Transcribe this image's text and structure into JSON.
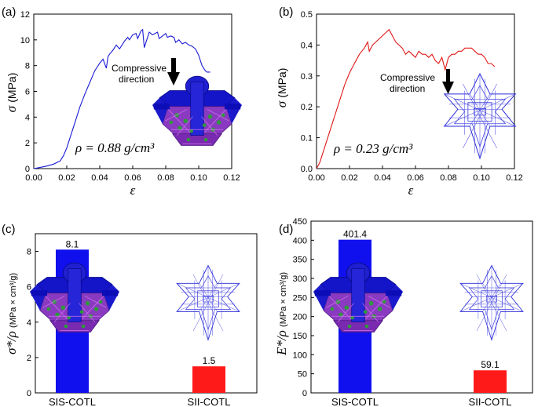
{
  "chart_data": [
    {
      "panel": "(a)",
      "type": "line",
      "xlabel": "ε",
      "ylabel": "σ (MPa)",
      "xlim": [
        0,
        0.12
      ],
      "ylim": [
        0,
        12
      ],
      "xticks": [
        "0.00",
        "0.02",
        "0.04",
        "0.06",
        "0.08",
        "0.10",
        "0.12"
      ],
      "yticks": [
        "0",
        "2",
        "4",
        "6",
        "8",
        "10",
        "12"
      ],
      "color": "#1a1ad6",
      "annotation": [
        "Compressive",
        "direction"
      ],
      "density_label": "ρ = 0.88 g/cm³",
      "series": [
        {
          "name": "SIS-COTL",
          "x": [
            0,
            0.004,
            0.008,
            0.012,
            0.016,
            0.018,
            0.02,
            0.022,
            0.025,
            0.028,
            0.031,
            0.034,
            0.037,
            0.04,
            0.042,
            0.044,
            0.045,
            0.046,
            0.048,
            0.05,
            0.052,
            0.055,
            0.057,
            0.058,
            0.06,
            0.062,
            0.063,
            0.065,
            0.066,
            0.067,
            0.069,
            0.07,
            0.072,
            0.075,
            0.076,
            0.078,
            0.08,
            0.081,
            0.083,
            0.085,
            0.086,
            0.088,
            0.09,
            0.092,
            0.094,
            0.096,
            0.098,
            0.1,
            0.102,
            0.104,
            0.105,
            0.107
          ],
          "y": [
            0,
            0.1,
            0.2,
            0.35,
            0.6,
            1.0,
            1.6,
            2.4,
            3.6,
            4.8,
            5.8,
            6.7,
            7.6,
            8.2,
            8.5,
            7.8,
            8.7,
            8.9,
            9.2,
            9.6,
            9.3,
            9.9,
            10.2,
            10.0,
            10.4,
            10.5,
            10.1,
            10.7,
            10.8,
            9.4,
            10.2,
            10.6,
            10.4,
            10.6,
            10.1,
            10.3,
            10.5,
            10.2,
            10.3,
            10.2,
            9.8,
            10.0,
            9.7,
            9.8,
            9.6,
            9.5,
            9.3,
            8.8,
            8.0,
            7.6,
            7.5,
            7.5
          ]
        }
      ]
    },
    {
      "panel": "(b)",
      "type": "line",
      "xlabel": "ε",
      "ylabel": "σ (MPa)",
      "xlim": [
        0,
        0.12
      ],
      "ylim": [
        0,
        0.5
      ],
      "xticks": [
        "0.00",
        "0.02",
        "0.04",
        "0.06",
        "0.08",
        "0.10",
        "0.12"
      ],
      "yticks": [
        "0.0",
        "0.1",
        "0.2",
        "0.3",
        "0.4",
        "0.5"
      ],
      "color": "#e01818",
      "annotation": [
        "Compressive",
        "direction"
      ],
      "density_label": "ρ = 0.23 g/cm³",
      "series": [
        {
          "name": "SII-COTL",
          "x": [
            0,
            0.002,
            0.005,
            0.008,
            0.011,
            0.014,
            0.017,
            0.02,
            0.023,
            0.026,
            0.029,
            0.031,
            0.032,
            0.034,
            0.036,
            0.038,
            0.04,
            0.042,
            0.044,
            0.046,
            0.048,
            0.05,
            0.052,
            0.054,
            0.056,
            0.058,
            0.06,
            0.062,
            0.064,
            0.066,
            0.068,
            0.07,
            0.072,
            0.074,
            0.076,
            0.078,
            0.08,
            0.082,
            0.084,
            0.086,
            0.088,
            0.09,
            0.092,
            0.094,
            0.096,
            0.098,
            0.1,
            0.102,
            0.104,
            0.106,
            0.108
          ],
          "y": [
            0,
            0.02,
            0.07,
            0.12,
            0.17,
            0.22,
            0.27,
            0.31,
            0.34,
            0.37,
            0.39,
            0.41,
            0.38,
            0.4,
            0.41,
            0.42,
            0.43,
            0.44,
            0.45,
            0.43,
            0.41,
            0.4,
            0.39,
            0.37,
            0.38,
            0.37,
            0.36,
            0.38,
            0.37,
            0.37,
            0.36,
            0.37,
            0.35,
            0.34,
            0.36,
            0.32,
            0.36,
            0.37,
            0.37,
            0.38,
            0.38,
            0.39,
            0.39,
            0.39,
            0.38,
            0.37,
            0.37,
            0.36,
            0.34,
            0.34,
            0.33
          ]
        }
      ]
    },
    {
      "panel": "(c)",
      "type": "bar",
      "ylabel": "σ*/ρ (MPa × cm³/g)",
      "ylim": [
        0,
        9
      ],
      "yticks": [
        "0",
        "2",
        "4",
        "6",
        "8"
      ],
      "categories": [
        "SIS-COTL",
        "SII-COTL"
      ],
      "values": [
        8.1,
        1.5
      ],
      "value_labels": [
        "8.1",
        "1.5"
      ],
      "colors": [
        "#1010ee",
        "#ff1a1a"
      ]
    },
    {
      "panel": "(d)",
      "type": "bar",
      "ylabel": "E*/ρ (MPa × cm³/g)",
      "ylim": [
        0,
        450
      ],
      "yticks": [
        "0",
        "50",
        "100",
        "150",
        "200",
        "250",
        "300",
        "350",
        "400",
        "450"
      ],
      "categories": [
        "SIS-COTL",
        "SII-COTL"
      ],
      "values": [
        401.4,
        59.1
      ],
      "value_labels": [
        "401.4",
        "59.1"
      ],
      "colors": [
        "#1010ee",
        "#ff1a1a"
      ]
    }
  ]
}
